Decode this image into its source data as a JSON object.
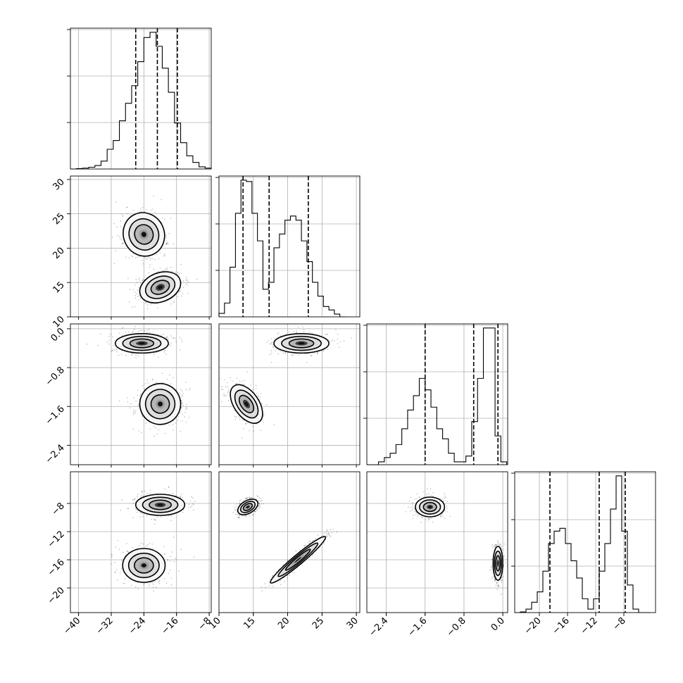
{
  "chart_data": {
    "type": "corner",
    "parameters": [
      {
        "range": [
          -42,
          -7.5
        ],
        "ticks": [
          -40,
          -32,
          -24,
          -16,
          -8
        ],
        "tick_labels": [
          "−40",
          "−32",
          "−24",
          "−16",
          "−8"
        ]
      },
      {
        "range": [
          10,
          30.5
        ],
        "ticks": [
          10,
          15,
          20,
          25,
          30
        ],
        "tick_labels": [
          "10",
          "15",
          "20",
          "25",
          "30"
        ]
      },
      {
        "range": [
          -2.8,
          0.1
        ],
        "ticks": [
          -2.4,
          -1.6,
          -0.8,
          0.0
        ],
        "tick_labels": [
          "−2.4",
          "−1.6",
          "−0.8",
          "0.0"
        ]
      },
      {
        "range": [
          -23.5,
          -3.5
        ],
        "ticks": [
          -20,
          -16,
          -12,
          -8
        ],
        "tick_labels": [
          "−20",
          "−16",
          "−12",
          "−8"
        ]
      }
    ],
    "histograms": [
      {
        "edges": [
          -42,
          -40.5,
          -39,
          -37.5,
          -36,
          -34.5,
          -33,
          -31.5,
          -30,
          -28.5,
          -27,
          -25.5,
          -24,
          -22.5,
          -21,
          -19.5,
          -18,
          -16.5,
          -15,
          -13.5,
          -12,
          -10.5,
          -9,
          -7.5
        ],
        "counts": [
          0,
          1,
          2,
          4,
          8,
          18,
          45,
          65,
          110,
          150,
          190,
          245,
          300,
          312,
          280,
          230,
          175,
          105,
          60,
          30,
          15,
          5,
          2
        ]
      },
      {
        "edges": [
          10,
          10.8,
          11.6,
          12.4,
          13.2,
          14,
          14.8,
          15.6,
          16.4,
          17.2,
          18,
          18.8,
          19.6,
          20.4,
          21.2,
          22,
          22.8,
          23.6,
          24.4,
          25.2,
          26,
          26.8,
          27.6,
          28.4
        ],
        "counts": [
          5,
          20,
          72,
          150,
          198,
          196,
          150,
          110,
          40,
          50,
          100,
          120,
          140,
          146,
          140,
          110,
          80,
          50,
          30,
          15,
          10,
          4,
          0
        ]
      },
      {
        "edges": [
          -2.8,
          -2.68,
          -2.56,
          -2.44,
          -2.32,
          -2.2,
          -2.08,
          -1.96,
          -1.84,
          -1.72,
          -1.6,
          -1.48,
          -1.36,
          -1.24,
          -1.12,
          -1.0,
          -0.88,
          -0.76,
          -0.64,
          -0.52,
          -0.4,
          -0.28,
          -0.16,
          -0.04,
          0.08
        ],
        "counts": [
          0,
          0,
          2,
          5,
          8,
          14,
          25,
          38,
          48,
          60,
          52,
          40,
          25,
          18,
          8,
          2,
          2,
          6,
          30,
          60,
          95,
          95,
          20,
          2
        ]
      },
      {
        "edges": [
          -23.5,
          -22.7,
          -21.9,
          -21.1,
          -20.3,
          -19.5,
          -18.7,
          -17.9,
          -17.1,
          -16.3,
          -15.5,
          -14.7,
          -13.9,
          -13.1,
          -12.3,
          -11.5,
          -10.7,
          -9.9,
          -9.1,
          -8.3,
          -7.5,
          -6.7,
          -5.9,
          -5.1,
          -4.3
        ],
        "counts": [
          0,
          1,
          5,
          15,
          30,
          60,
          100,
          118,
          122,
          100,
          75,
          50,
          20,
          5,
          20,
          60,
          100,
          150,
          198,
          118,
          40,
          5,
          0,
          0
        ]
      }
    ],
    "quantiles": [
      [
        -26.0,
        -20.7,
        -15.8
      ],
      [
        13.5,
        17.3,
        23.0
      ],
      [
        -1.6,
        -0.6,
        -0.1
      ],
      [
        -18.5,
        -11.5,
        -7.8
      ]
    ],
    "joint": [
      {
        "x": 0,
        "y": 1,
        "modes": [
          {
            "cx": -24.0,
            "cy": 22.0,
            "rx": 5.0,
            "ry": 3.2,
            "rot": -25,
            "peak": 0.55,
            "n": 3000
          },
          {
            "cx": -20.0,
            "cy": 14.3,
            "rx": 5.2,
            "ry": 2.1,
            "rot": -22,
            "peak": 1.0,
            "n": 3000
          }
        ]
      },
      {
        "x": 0,
        "y": 2,
        "modes": [
          {
            "cx": -24.5,
            "cy": -0.3,
            "rx": 6.5,
            "ry": 0.2,
            "rot": 0,
            "peak": 1.0,
            "n": 3000
          },
          {
            "cx": -20.0,
            "cy": -1.55,
            "rx": 5.0,
            "ry": 0.42,
            "rot": -20,
            "peak": 0.6,
            "n": 3000
          }
        ]
      },
      {
        "x": 1,
        "y": 2,
        "modes": [
          {
            "cx": 14.0,
            "cy": -1.55,
            "rx": 1.8,
            "ry": 0.45,
            "rot": -35,
            "peak": 1.0,
            "n": 3000
          },
          {
            "cx": 22.0,
            "cy": -0.3,
            "rx": 4.0,
            "ry": 0.2,
            "rot": 0,
            "peak": 1.0,
            "n": 3000
          }
        ]
      },
      {
        "x": 0,
        "y": 3,
        "modes": [
          {
            "cx": -20.0,
            "cy": -8.2,
            "rx": 6.0,
            "ry": 1.5,
            "rot": 0,
            "peak": 1.0,
            "n": 3000
          },
          {
            "cx": -24.0,
            "cy": -16.8,
            "rx": 5.2,
            "ry": 2.4,
            "rot": 0,
            "peak": 0.5,
            "n": 3000
          }
        ]
      },
      {
        "x": 1,
        "y": 3,
        "modes": [
          {
            "cx": 14.2,
            "cy": -8.5,
            "rx": 1.6,
            "ry": 0.9,
            "rot": -30,
            "peak": 1.0,
            "n": 3000
          },
          {
            "cx": 21.5,
            "cy": -16.0,
            "rx": 5.2,
            "ry": 0.7,
            "rot": -40,
            "peak": 0.7,
            "n": 3000
          }
        ]
      },
      {
        "x": 2,
        "y": 3,
        "modes": [
          {
            "cx": -1.5,
            "cy": -8.5,
            "rx": 0.3,
            "ry": 1.4,
            "rot": 0,
            "peak": 1.0,
            "n": 3000
          },
          {
            "cx": -0.1,
            "cy": -16.5,
            "rx": 0.1,
            "ry": 2.4,
            "rot": 0,
            "peak": 1.0,
            "n": 3000
          }
        ]
      }
    ]
  }
}
